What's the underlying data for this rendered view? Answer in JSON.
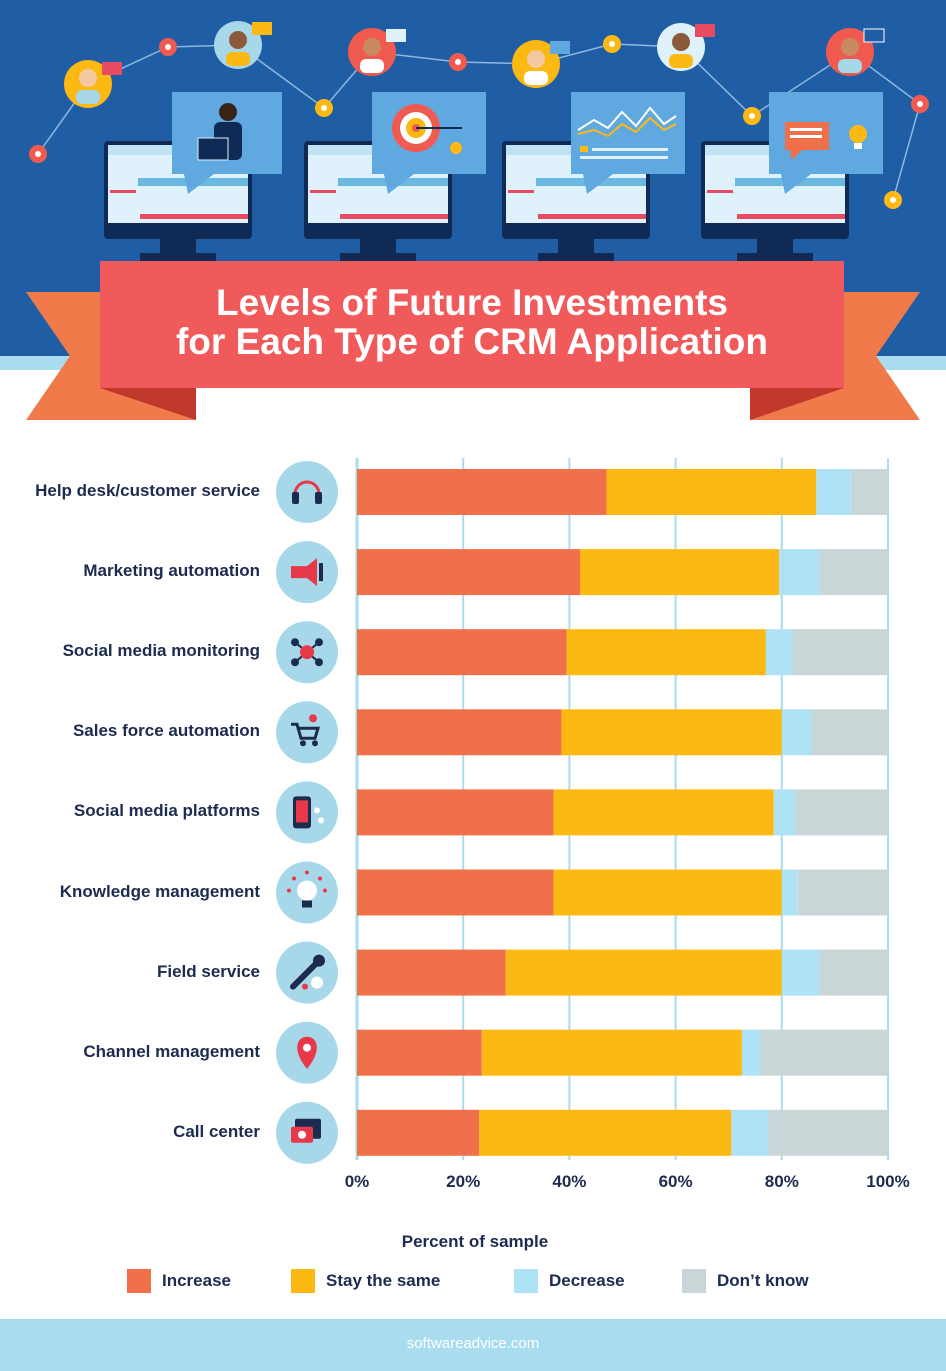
{
  "colors": {
    "increase": "#f07049",
    "stay": "#fdb913",
    "decrease": "#aee3f7",
    "dontknow": "#c9d6d7",
    "icon_bg": "#a6d8ea",
    "text": "#1c2b4f"
  },
  "title_line1": "Levels of Future Investments",
  "title_line2": "for Each Type of CRM Application",
  "icons": [
    "headset-icon",
    "megaphone-icon",
    "network-icon",
    "cart-icon",
    "mobile-icon",
    "lightbulb-icon",
    "wrench-icon",
    "location-pin-icon",
    "phone-chat-icon"
  ],
  "chart_data": {
    "type": "bar",
    "orientation": "horizontal",
    "stacked": true,
    "categories": [
      "Help desk/customer service",
      "Marketing automation",
      "Social media monitoring",
      "Sales force automation",
      "Social media platforms",
      "Knowledge management",
      "Field service",
      "Channel management",
      "Call center"
    ],
    "series": [
      {
        "name": "Increase",
        "values": [
          47,
          42,
          39.5,
          38.5,
          37,
          37,
          28,
          23.5,
          23
        ]
      },
      {
        "name": "Stay the same",
        "values": [
          39.5,
          37.5,
          37.5,
          41.5,
          41.5,
          43,
          52,
          49,
          47.5
        ]
      },
      {
        "name": "Decrease",
        "values": [
          6.5,
          7.5,
          5,
          5.5,
          4,
          3,
          7,
          3.5,
          7
        ]
      },
      {
        "name": "Don’t know",
        "values": [
          7,
          13,
          18,
          14.5,
          17.5,
          17,
          13,
          24,
          22.5
        ]
      }
    ],
    "xlim": [
      0,
      100
    ],
    "xticks": [
      "0%",
      "20%",
      "40%",
      "60%",
      "80%",
      "100%"
    ],
    "xlabel": "Percent of sample",
    "ylabel": "",
    "grid": true,
    "legend": "bottom"
  },
  "footer": "softwareadvice.com"
}
